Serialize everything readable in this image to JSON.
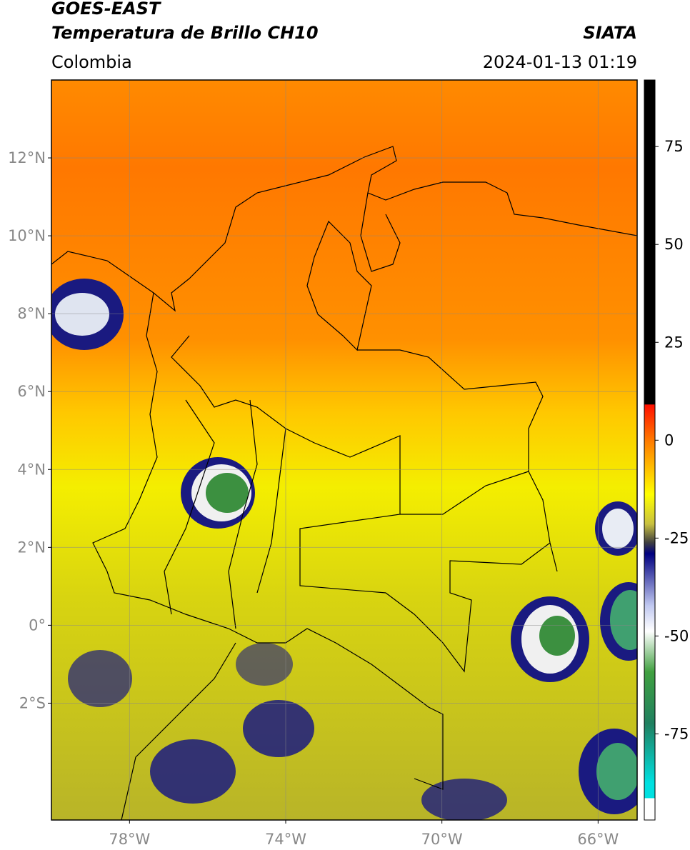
{
  "header": {
    "title_line1": "GOES-EAST",
    "title_line2": "Temperatura de Brillo CH10",
    "agency": "SIATA",
    "region": "Colombia",
    "timestamp": "2024-01-13 01:19"
  },
  "map": {
    "lonlim": [
      -80,
      -65
    ],
    "latlim": [
      -5,
      14
    ],
    "lon_ticks": [
      {
        "value": -78,
        "label": "78°W"
      },
      {
        "value": -74,
        "label": "74°W"
      },
      {
        "value": -70,
        "label": "70°W"
      },
      {
        "value": -66,
        "label": "66°W"
      }
    ],
    "lat_ticks": [
      {
        "value": 12,
        "label": "12°N"
      },
      {
        "value": 10,
        "label": "10°N"
      },
      {
        "value": 8,
        "label": "8°N"
      },
      {
        "value": 6,
        "label": "6°N"
      },
      {
        "value": 4,
        "label": "4°N"
      },
      {
        "value": 2,
        "label": "2°N"
      },
      {
        "value": 0,
        "label": "0°"
      },
      {
        "value": -2,
        "label": "2°S"
      }
    ],
    "grid": true
  },
  "colorbar": {
    "lim": [
      -97,
      92
    ],
    "ticks": [
      75,
      50,
      25,
      0,
      -25,
      -50,
      -75
    ]
  }
}
